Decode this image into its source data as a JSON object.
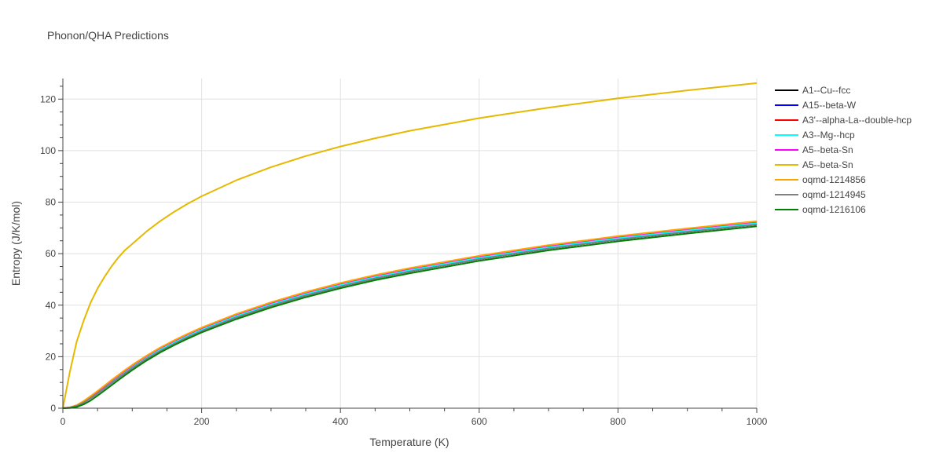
{
  "chart_data": {
    "type": "line",
    "title": "Phonon/QHA Predictions",
    "xlabel": "Temperature (K)",
    "ylabel": "Entropy (J/K/mol)",
    "xlim": [
      0,
      1000
    ],
    "ylim": [
      0,
      128
    ],
    "xticks": [
      0,
      200,
      400,
      600,
      800,
      1000
    ],
    "yticks": [
      0,
      20,
      40,
      60,
      80,
      100,
      120
    ],
    "grid": true,
    "legend_position": "top-right",
    "x": [
      0,
      10,
      20,
      30,
      40,
      50,
      60,
      70,
      80,
      90,
      100,
      120,
      140,
      160,
      180,
      200,
      250,
      300,
      350,
      400,
      450,
      500,
      600,
      700,
      800,
      900,
      1000
    ],
    "series": [
      {
        "name": "A1--Cu--fcc",
        "color": "#000000",
        "values": [
          0,
          0.2,
          0.9,
          2.2,
          3.9,
          5.8,
          7.8,
          9.8,
          11.8,
          13.7,
          15.6,
          19.1,
          22.2,
          25.0,
          27.6,
          30.0,
          35.3,
          39.8,
          43.8,
          47.3,
          50.4,
          53.1,
          57.9,
          62.0,
          65.5,
          68.5,
          71.3
        ]
      },
      {
        "name": "A15--beta-W",
        "color": "#0000ff",
        "values": [
          0,
          0.2,
          0.9,
          2.2,
          3.9,
          5.8,
          7.8,
          9.8,
          11.8,
          13.7,
          15.6,
          19.1,
          22.2,
          25.0,
          27.6,
          30.0,
          35.3,
          39.8,
          43.8,
          47.3,
          50.4,
          53.1,
          57.9,
          62.0,
          65.5,
          68.5,
          71.3
        ]
      },
      {
        "name": "A3'--alpha-La--double-hcp",
        "color": "#ff0000",
        "values": [
          0,
          0.3,
          1.1,
          2.6,
          4.5,
          6.5,
          8.6,
          10.7,
          12.7,
          14.7,
          16.6,
          20.1,
          23.3,
          26.1,
          28.7,
          31.1,
          36.4,
          40.9,
          44.9,
          48.4,
          51.5,
          54.2,
          59.0,
          63.1,
          66.6,
          69.6,
          72.4
        ]
      },
      {
        "name": "A3--Mg--hcp",
        "color": "#00ffff",
        "values": [
          0,
          0.2,
          1.0,
          2.4,
          4.2,
          6.2,
          8.2,
          10.2,
          12.2,
          14.2,
          16.1,
          19.6,
          22.7,
          25.5,
          28.1,
          30.5,
          35.8,
          40.3,
          44.3,
          47.8,
          50.9,
          53.6,
          58.4,
          62.5,
          66.0,
          69.0,
          71.8
        ]
      },
      {
        "name": "A5--beta-Sn",
        "color": "#ff00ff",
        "values": [
          0,
          0.3,
          1.1,
          2.6,
          4.5,
          6.5,
          8.6,
          10.7,
          12.7,
          14.7,
          16.6,
          20.1,
          23.3,
          26.1,
          28.7,
          31.1,
          36.4,
          40.9,
          44.9,
          48.4,
          51.5,
          54.2,
          59.0,
          63.1,
          66.6,
          69.6,
          72.4
        ]
      },
      {
        "name": "A5--beta-Sn",
        "color": "#e6b800",
        "values": [
          0,
          14,
          26,
          34,
          41,
          46.5,
          51,
          55,
          58.5,
          61.5,
          63.8,
          68.5,
          72.6,
          76.2,
          79.4,
          82.3,
          88.5,
          93.6,
          97.9,
          101.6,
          104.8,
          107.7,
          112.6,
          116.7,
          120.3,
          123.4,
          126.2
        ]
      },
      {
        "name": "oqmd-1214856",
        "color": "#ffa500",
        "values": [
          0,
          0.3,
          1.2,
          2.8,
          4.7,
          6.7,
          8.8,
          10.9,
          12.9,
          14.9,
          16.8,
          20.3,
          23.5,
          26.3,
          28.9,
          31.3,
          36.6,
          41.1,
          45.1,
          48.6,
          51.7,
          54.4,
          59.2,
          63.3,
          66.8,
          69.8,
          72.6
        ]
      },
      {
        "name": "oqmd-1214945",
        "color": "#808080",
        "values": [
          0,
          0.2,
          0.9,
          2.2,
          3.9,
          5.8,
          7.8,
          9.8,
          11.8,
          13.7,
          15.6,
          19.1,
          22.2,
          25.0,
          27.6,
          30.0,
          35.3,
          39.8,
          43.8,
          47.3,
          50.4,
          53.1,
          57.9,
          62.0,
          65.5,
          68.5,
          71.3
        ]
      },
      {
        "name": "oqmd-1216106",
        "color": "#008000",
        "values": [
          0,
          0.1,
          0.5,
          1.5,
          3.0,
          4.9,
          6.9,
          8.9,
          10.9,
          12.9,
          14.8,
          18.4,
          21.6,
          24.4,
          27.0,
          29.4,
          34.6,
          39.1,
          43.1,
          46.6,
          49.7,
          52.4,
          57.2,
          61.3,
          64.8,
          67.8,
          70.6
        ]
      }
    ]
  }
}
